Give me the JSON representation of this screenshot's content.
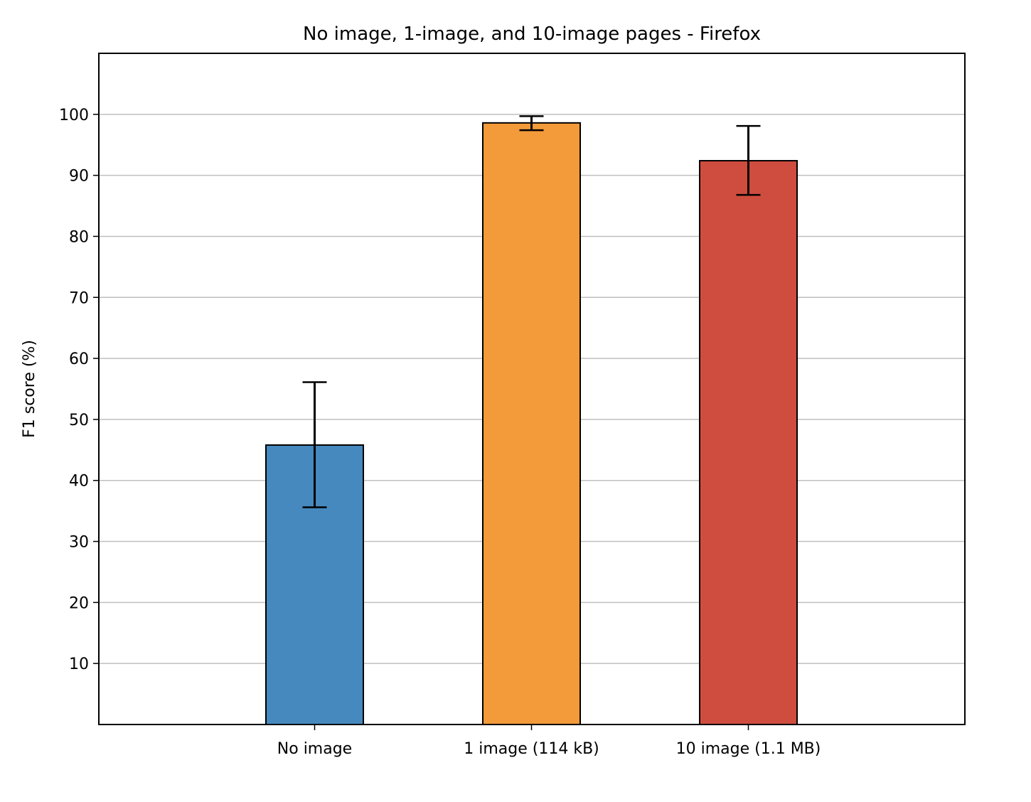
{
  "chart_data": {
    "type": "bar",
    "title": "No image, 1-image, and 10-image pages - Firefox",
    "xlabel": "",
    "ylabel": "F1 score (%)",
    "ylim": [
      0,
      110
    ],
    "yticks": [
      10,
      20,
      30,
      40,
      50,
      60,
      70,
      80,
      90,
      100
    ],
    "grid": "horizontal",
    "categories": [
      "No image",
      "1 image (114 kB)",
      "10 image (1.1 MB)"
    ],
    "values": [
      45.8,
      98.6,
      92.4
    ],
    "error_low": [
      35.6,
      97.4,
      86.8
    ],
    "error_high": [
      56.1,
      99.7,
      98.1
    ],
    "colors": [
      "#4689be",
      "#f39a3a",
      "#cf4d3e"
    ]
  }
}
